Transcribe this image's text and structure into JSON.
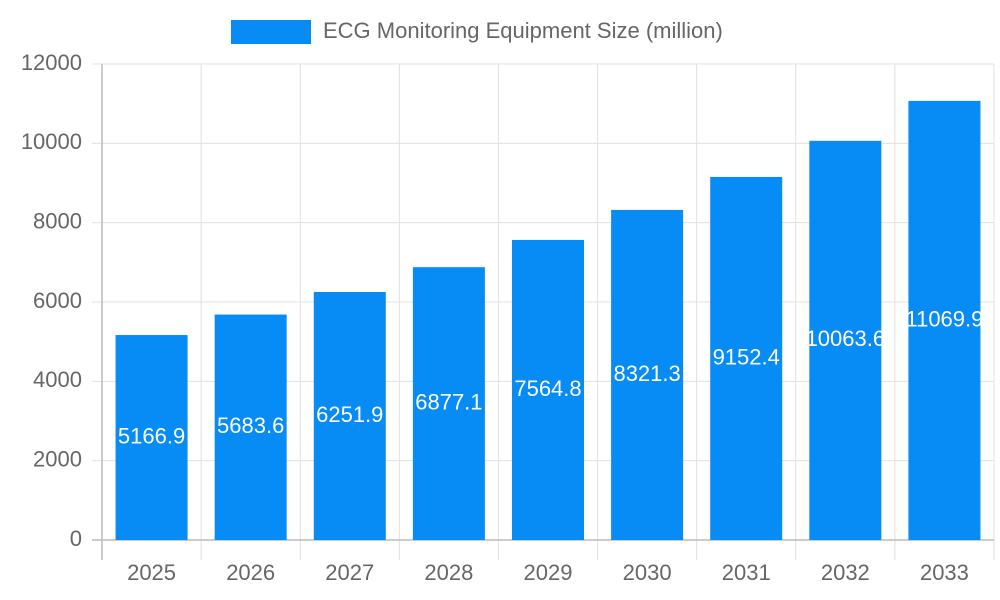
{
  "chart_data": {
    "type": "bar",
    "categories": [
      "2025",
      "2026",
      "2027",
      "2028",
      "2029",
      "2030",
      "2031",
      "2032",
      "2033"
    ],
    "series": [
      {
        "name": "ECG Monitoring Equipment Size (million)",
        "color": "#078bf5",
        "values": [
          5166.9,
          5683.6,
          6251.9,
          6877.1,
          7564.8,
          8321.3,
          9152.4,
          10063.6,
          11069.9
        ]
      }
    ],
    "ylim": [
      0,
      12000
    ],
    "yticks": [
      0,
      2000,
      4000,
      6000,
      8000,
      10000,
      12000
    ],
    "grid": true,
    "legend": "top"
  }
}
